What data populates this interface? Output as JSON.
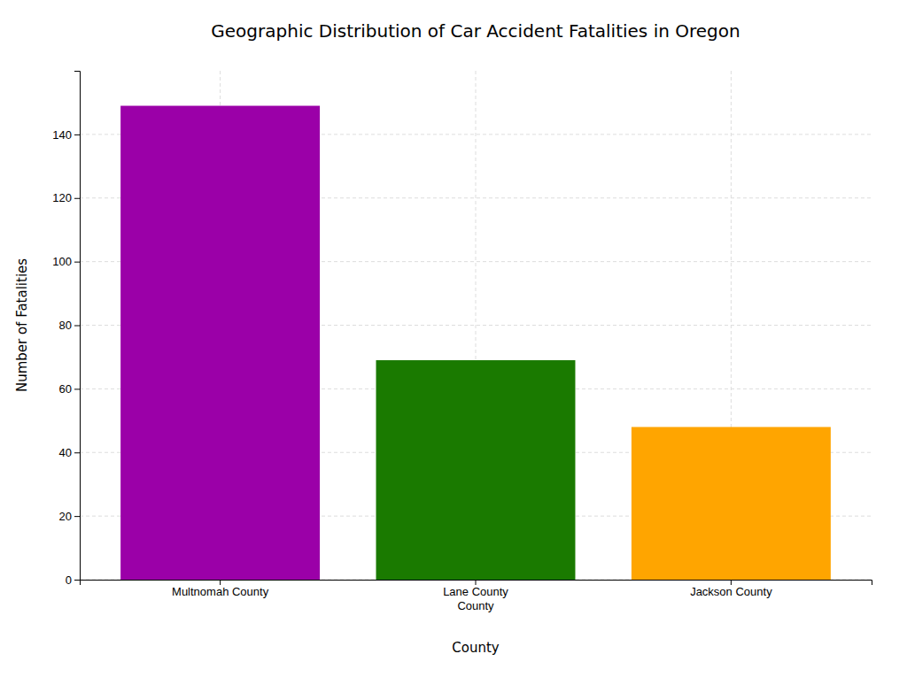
{
  "chart_data": {
    "type": "bar",
    "title": "Geographic Distribution of Car Accident Fatalities in Oregon",
    "xlabel": "County",
    "ylabel": "Number of Fatalities",
    "categories": [
      "Multnomah County",
      "Lane County\nCounty",
      "Jackson County"
    ],
    "values": [
      149,
      69,
      48
    ],
    "colors": [
      "#9B00A8",
      "#1A7A00",
      "#FFA500"
    ],
    "ylim": [
      0,
      160
    ],
    "yticks": [
      0,
      20,
      40,
      60,
      80,
      100,
      120,
      140
    ],
    "grid": true
  }
}
